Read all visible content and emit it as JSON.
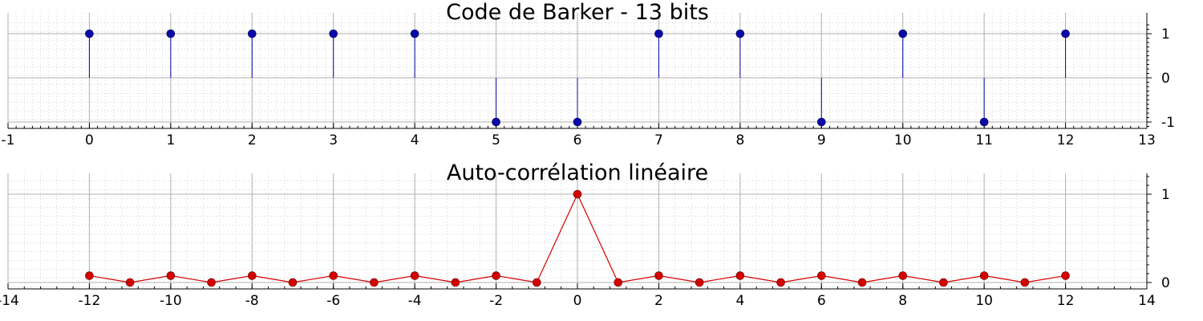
{
  "colors": {
    "barker": "#0a0aa8",
    "corr": "#d40000",
    "grid": "#b0b0b0"
  },
  "chart_data": [
    {
      "type": "stem",
      "title": "Code de Barker - 13 bits",
      "xlim": [
        -1,
        13
      ],
      "ylim": [
        -1,
        1
      ],
      "xticks": [
        -1,
        0,
        1,
        2,
        3,
        4,
        5,
        6,
        7,
        8,
        9,
        10,
        11,
        12,
        13
      ],
      "yticks": [
        -1,
        0,
        1
      ],
      "grid": true,
      "x": [
        0,
        1,
        2,
        3,
        4,
        5,
        6,
        7,
        8,
        9,
        10,
        11,
        12
      ],
      "values": [
        1,
        1,
        1,
        1,
        1,
        -1,
        -1,
        1,
        1,
        -1,
        1,
        -1,
        1
      ]
    },
    {
      "type": "line",
      "title": "Auto-corrélation linéaire",
      "xlim": [
        -14,
        14
      ],
      "ylim": [
        0,
        1
      ],
      "xticks": [
        -14,
        -12,
        -10,
        -8,
        -6,
        -4,
        -2,
        0,
        2,
        4,
        6,
        8,
        10,
        12,
        14
      ],
      "yticks": [
        0,
        1
      ],
      "grid": true,
      "x": [
        -12,
        -11,
        -10,
        -9,
        -8,
        -7,
        -6,
        -5,
        -4,
        -3,
        -2,
        -1,
        0,
        1,
        2,
        3,
        4,
        5,
        6,
        7,
        8,
        9,
        10,
        11,
        12
      ],
      "values": [
        0.077,
        0,
        0.077,
        0,
        0.077,
        0,
        0.077,
        0,
        0.077,
        0,
        0.077,
        0,
        1,
        0,
        0.077,
        0,
        0.077,
        0,
        0.077,
        0,
        0.077,
        0,
        0.077,
        0,
        0.077
      ]
    }
  ]
}
